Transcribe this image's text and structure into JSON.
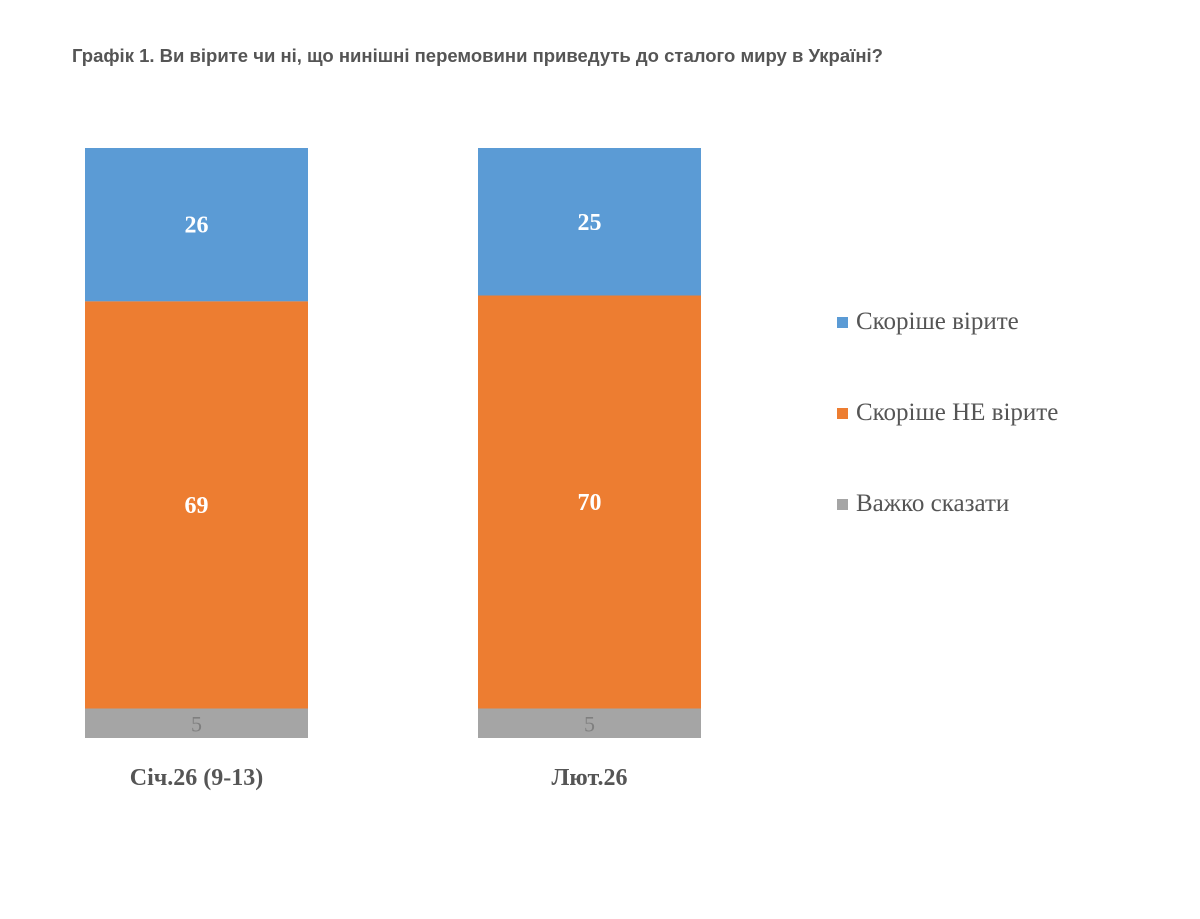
{
  "chart_data": {
    "type": "bar",
    "stacked": true,
    "title": "Графік 1. Ви вірите чи ні, що нинішні перемовини приведуть до сталого миру в Україні?",
    "categories": [
      "Січ.26 (9-13)",
      "Лют.26"
    ],
    "series": [
      {
        "name": "Скоріше вірите",
        "values": [
          26,
          25
        ],
        "color": "#5B9BD5",
        "label_color": "#ffffff"
      },
      {
        "name": "Скоріше НЕ вірите",
        "values": [
          69,
          70
        ],
        "color": "#ED7D31",
        "label_color": "#ffffff"
      },
      {
        "name": "Важко сказати",
        "values": [
          5,
          5
        ],
        "color": "#A5A5A5",
        "label_color": "#7f7f7f"
      }
    ],
    "ylim": [
      0,
      100
    ],
    "grid": false,
    "legend_position": "right"
  }
}
